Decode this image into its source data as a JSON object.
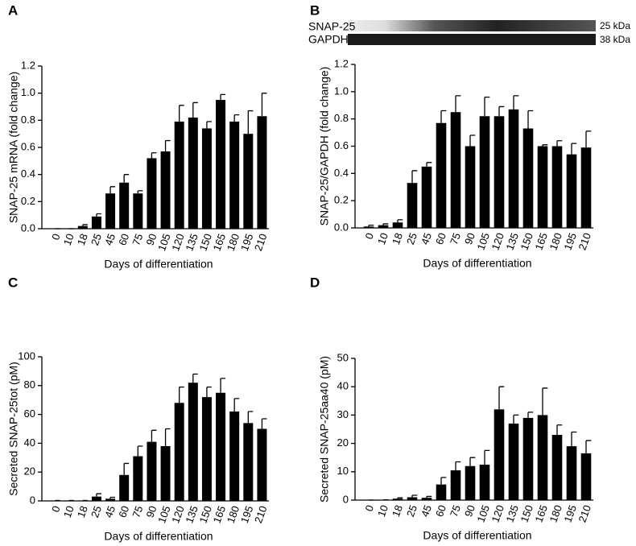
{
  "chart_data": [
    {
      "type": "bar",
      "panel_label": "A",
      "ylabel": "SNAP-25 mRNA (fold change)",
      "xlabel": "Days of differentiation",
      "categories": [
        "0",
        "10",
        "18",
        "25",
        "45",
        "60",
        "75",
        "90",
        "105",
        "120",
        "135",
        "150",
        "165",
        "180",
        "195",
        "210"
      ],
      "values": [
        0,
        0,
        0.02,
        0.09,
        0.26,
        0.34,
        0.26,
        0.52,
        0.57,
        0.79,
        0.82,
        0.74,
        0.95,
        0.79,
        0.7,
        0.83
      ],
      "errors": [
        0,
        0,
        0.01,
        0.02,
        0.05,
        0.06,
        0.02,
        0.04,
        0.08,
        0.12,
        0.11,
        0.05,
        0.04,
        0.05,
        0.17,
        0.17
      ],
      "color": "#000000",
      "ylim": [
        0,
        1.2
      ],
      "yticks": [
        {
          "value": 0,
          "label": "0.0"
        },
        0.2,
        0.4,
        0.6,
        0.8,
        {
          "value": 1,
          "label": "1.0"
        },
        1.2
      ]
    },
    {
      "type": "bar",
      "panel_label": "B",
      "ylabel": "SNAP-25/GAPDH (fold change)",
      "xlabel": "Days of differentiation",
      "blot": {
        "rows": [
          "SNAP-25",
          "GAPDH"
        ],
        "sizes": [
          "25 kDa",
          "38 kDa"
        ]
      },
      "categories": [
        "0",
        "10",
        "18",
        "25",
        "45",
        "60",
        "75",
        "90",
        "105",
        "120",
        "135",
        "150",
        "165",
        "180",
        "195",
        "210"
      ],
      "values": [
        0.01,
        0.02,
        0.04,
        0.33,
        0.45,
        0.77,
        0.85,
        0.6,
        0.82,
        0.82,
        0.87,
        0.73,
        0.6,
        0.6,
        0.54,
        0.59
      ],
      "errors": [
        0.01,
        0.01,
        0.02,
        0.09,
        0.03,
        0.09,
        0.12,
        0.08,
        0.14,
        0.07,
        0.1,
        0.13,
        0.01,
        0.04,
        0.08,
        0.12
      ],
      "color": "#000000",
      "ylim": [
        0,
        1.2
      ],
      "yticks": [
        {
          "value": 0,
          "label": "0.0"
        },
        0.2,
        0.4,
        0.6,
        0.8,
        {
          "value": 1,
          "label": "1.0"
        },
        1.2
      ]
    },
    {
      "type": "bar",
      "panel_label": "C",
      "ylabel": "Secreted SNAP-25tot  (pM)",
      "xlabel": "Days of differentiation",
      "categories": [
        "0",
        "10",
        "18",
        "25",
        "45",
        "60",
        "75",
        "90",
        "105",
        "120",
        "135",
        "150",
        "165",
        "180",
        "195",
        "210"
      ],
      "values": [
        0.3,
        0.3,
        0.3,
        3,
        1.5,
        18,
        31,
        41,
        38,
        68,
        82,
        72,
        75,
        62,
        54,
        50
      ],
      "errors": [
        0,
        0,
        0,
        2,
        1,
        8,
        7,
        8,
        12,
        11,
        6,
        7,
        10,
        9,
        8,
        7
      ],
      "color": "#000000",
      "ylim": [
        0,
        100
      ],
      "yticks": [
        0,
        20,
        40,
        60,
        80,
        100
      ]
    },
    {
      "type": "bar",
      "panel_label": "D",
      "ylabel": "Secreted SNAP-25aa40 (pM)",
      "xlabel": "Days of differentiation",
      "categories": [
        "0",
        "10",
        "18",
        "25",
        "45",
        "60",
        "75",
        "90",
        "105",
        "120",
        "135",
        "150",
        "165",
        "180",
        "195",
        "210"
      ],
      "values": [
        0,
        0.1,
        0.5,
        1,
        0.8,
        5.5,
        10.5,
        12,
        12.5,
        32,
        27,
        29,
        30,
        23,
        19,
        16.5
      ],
      "errors": [
        0,
        0,
        0.3,
        0.7,
        0.5,
        2.5,
        3,
        3,
        5,
        8,
        3,
        2,
        9.5,
        3.5,
        5,
        4.5
      ],
      "color": "#000000",
      "ylim": [
        0,
        50
      ],
      "yticks": [
        0,
        10,
        20,
        30,
        40,
        50
      ]
    }
  ]
}
